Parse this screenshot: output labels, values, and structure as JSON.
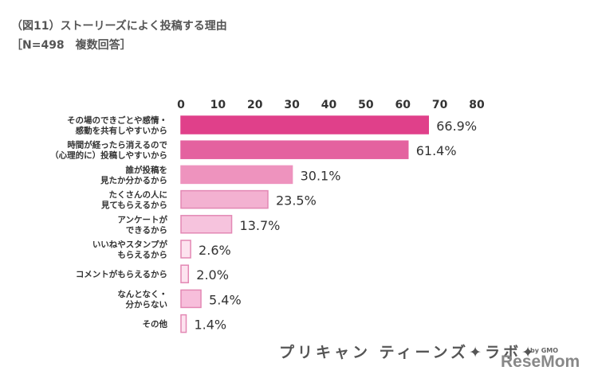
{
  "title": "（図11）ストーリーズによく投稿する理由",
  "subtitle": "［N=498　複数回答］",
  "chart_data": {
    "type": "bar",
    "orientation": "horizontal",
    "title": "（図11）ストーリーズによく投稿する理由",
    "subtitle": "［N=498　複数回答］",
    "xlim": [
      0,
      80
    ],
    "ticks": [
      "0",
      "10",
      "20",
      "30",
      "40",
      "50",
      "60",
      "70",
      "80"
    ],
    "grid": false,
    "categories": [
      [
        "その場のできごとや感情・",
        "感動を共有しやすいから"
      ],
      [
        "時間が経ったら消えるので",
        "（心理的に）投稿しやすいから"
      ],
      [
        "誰が投稿を",
        "見たか分かるから"
      ],
      [
        "たくさんの人に",
        "見てもらえるから"
      ],
      [
        "アンケートが",
        "できるから"
      ],
      [
        "いいねやスタンプが",
        "もらえるから"
      ],
      [
        "コメントがもらえるから"
      ],
      [
        "なんとなく・",
        "分からない"
      ],
      [
        "その他"
      ]
    ],
    "values": [
      66.9,
      61.4,
      30.1,
      23.5,
      13.7,
      2.6,
      2.0,
      5.4,
      1.4
    ],
    "labels": [
      "66.9%",
      "61.4%",
      "30.1%",
      "23.5%",
      "13.7%",
      "2.6%",
      "2.0%",
      "5.4%",
      "1.4%"
    ],
    "colors": [
      "#e0408a",
      "#e4629f",
      "#ee93be",
      "#f3b1d1",
      "#f6c3dd",
      "#fde3ef",
      "#fde3ef",
      "#f7bedb",
      "#fde3ef"
    ],
    "borders": [
      "#e0408a",
      "#e4629f",
      "#ee93be",
      "#e388b4",
      "#e388b4",
      "#e388b4",
      "#e388b4",
      "#e388b4",
      "#e388b4"
    ]
  },
  "logos": {
    "brand": "プリキャン ティーンズ✦ラボ✦",
    "by": "by GMO",
    "site": "ReseMom"
  }
}
